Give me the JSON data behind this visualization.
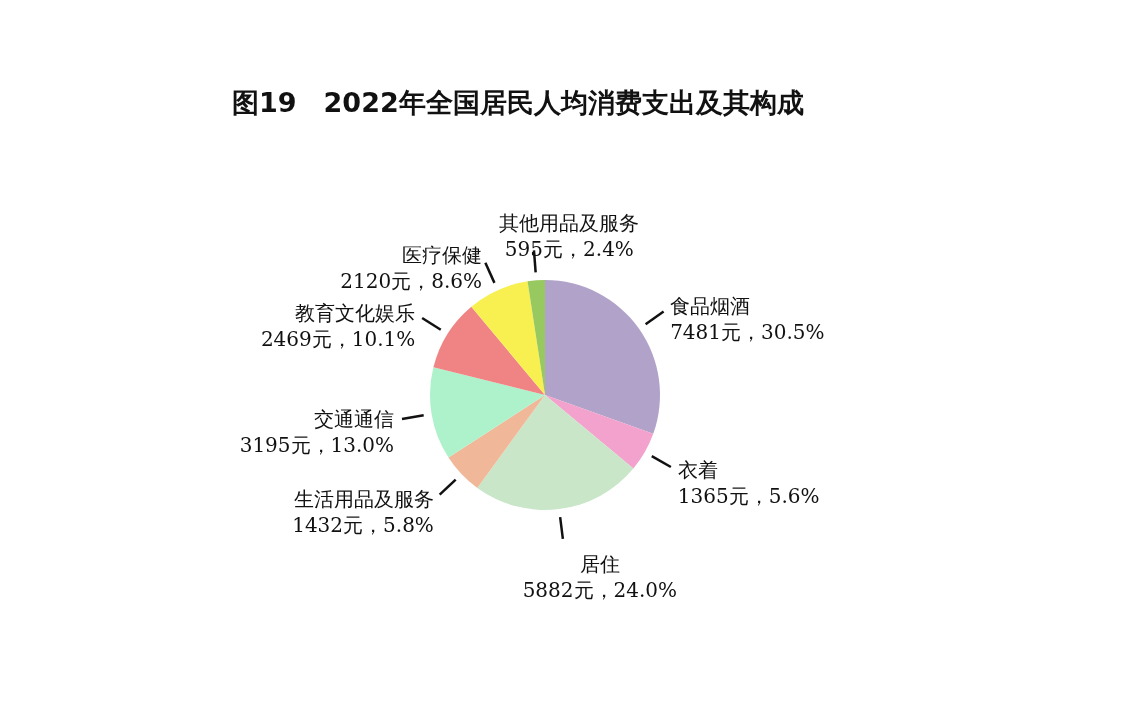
{
  "chart_data": {
    "type": "pie",
    "title": "图19　2022年全国居民人均消费支出及其构成",
    "categories": [
      "食品烟酒",
      "衣着",
      "居住",
      "生活用品及服务",
      "交通通信",
      "教育文化娱乐",
      "医疗保健",
      "其他用品及服务"
    ],
    "values": [
      7481,
      1365,
      5882,
      1432,
      3195,
      2469,
      2120,
      595
    ],
    "value_labels": [
      "7481元，30.5%",
      "1365元，5.6%",
      "5882元，24.0%",
      "1432元，5.8%",
      "3195元，13.0%",
      "2469元，10.1%",
      "2120元，8.6%",
      "595元，2.4%"
    ],
    "colors": [
      "#b0a2c8",
      "#f2a2cc",
      "#c9e6c9",
      "#f0b898",
      "#aef2cc",
      "#f08484",
      "#f8f050",
      "#98c860"
    ]
  }
}
